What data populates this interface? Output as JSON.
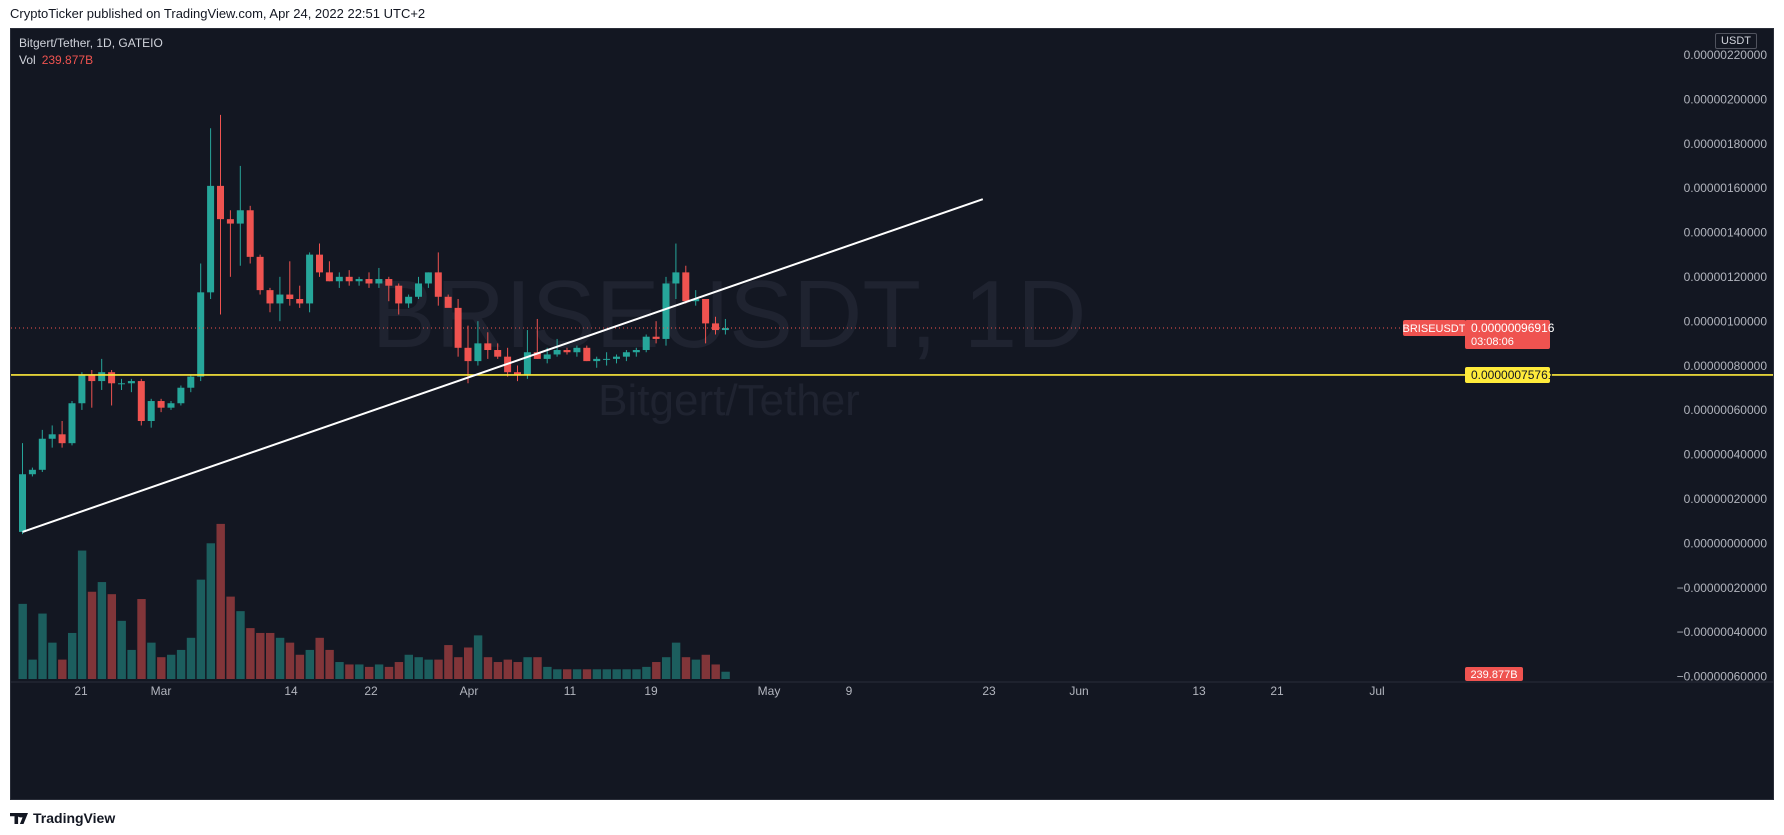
{
  "header": {
    "publish_line": "CryptoTicker published on TradingView.com, Apr 24, 2022 22:51 UTC+2"
  },
  "legend": {
    "symbol_line": "Bitgert/Tether, 1D, GATEIO",
    "vol_label": "Vol",
    "vol_value": "239.877B"
  },
  "currency_tag": "USDT",
  "watermark": {
    "ticker": "BRISEUSDT, 1D",
    "name": "Bitgert/Tether"
  },
  "footer": {
    "brand": "TradingView"
  },
  "colors": {
    "up": "#26a69a",
    "down": "#ef5350",
    "background": "#131722",
    "support_line": "#ffeb3b",
    "trend_line": "#ffffff"
  },
  "chart_data": {
    "type": "candlestick",
    "y_axis": {
      "ticks": [
        "0.00000220000",
        "0.00000200000",
        "0.00000180000",
        "0.00000160000",
        "0.00000140000",
        "0.00000120000",
        "0.00000100000",
        "0.00000080000",
        "0.00000060000",
        "0.00000040000",
        "0.00000020000",
        "0.00000000000",
        "−0.00000020000",
        "−0.00000040000",
        "−0.00000060000"
      ],
      "ylim": [
        -6e-07,
        2.2e-06
      ]
    },
    "x_axis": {
      "ticks": [
        "21",
        "Mar",
        "14",
        "22",
        "Apr",
        "11",
        "19",
        "May",
        "9",
        "23",
        "Jun",
        "13",
        "21",
        "Jul"
      ]
    },
    "candles": [
      {
        "o": 5e-08,
        "h": 4.5e-07,
        "l": 4e-08,
        "c": 3.1e-07
      },
      {
        "o": 3.1e-07,
        "h": 3.4e-07,
        "l": 3e-07,
        "c": 3.3e-07
      },
      {
        "o": 3.3e-07,
        "h": 5.1e-07,
        "l": 3.2e-07,
        "c": 4.7e-07
      },
      {
        "o": 4.7e-07,
        "h": 5.3e-07,
        "l": 4.3e-07,
        "c": 4.9e-07
      },
      {
        "o": 4.9e-07,
        "h": 5.5e-07,
        "l": 4.3e-07,
        "c": 4.5e-07
      },
      {
        "o": 4.5e-07,
        "h": 6.4e-07,
        "l": 4.4e-07,
        "c": 6.3e-07
      },
      {
        "o": 6.3e-07,
        "h": 7.7e-07,
        "l": 6e-07,
        "c": 7.6e-07
      },
      {
        "o": 7.6e-07,
        "h": 7.8e-07,
        "l": 6.1e-07,
        "c": 7.3e-07
      },
      {
        "o": 7.3e-07,
        "h": 8.3e-07,
        "l": 6.9e-07,
        "c": 7.7e-07
      },
      {
        "o": 7.7e-07,
        "h": 7.8e-07,
        "l": 6.2e-07,
        "c": 7.2e-07
      },
      {
        "o": 7.2e-07,
        "h": 7.4e-07,
        "l": 6.9e-07,
        "c": 7.2e-07
      },
      {
        "o": 7.2e-07,
        "h": 7.4e-07,
        "l": 6.8e-07,
        "c": 7.3e-07
      },
      {
        "o": 7.3e-07,
        "h": 7.4e-07,
        "l": 5.3e-07,
        "c": 5.5e-07
      },
      {
        "o": 5.5e-07,
        "h": 6.5e-07,
        "l": 5.2e-07,
        "c": 6.4e-07
      },
      {
        "o": 6.4e-07,
        "h": 6.5e-07,
        "l": 5.9e-07,
        "c": 6.1e-07
      },
      {
        "o": 6.1e-07,
        "h": 6.4e-07,
        "l": 6e-07,
        "c": 6.3e-07
      },
      {
        "o": 6.3e-07,
        "h": 7.1e-07,
        "l": 6.2e-07,
        "c": 7e-07
      },
      {
        "o": 7e-07,
        "h": 7.6e-07,
        "l": 6.8e-07,
        "c": 7.5e-07
      },
      {
        "o": 7.5e-07,
        "h": 1.26e-06,
        "l": 7.3e-07,
        "c": 1.13e-06
      },
      {
        "o": 1.13e-06,
        "h": 1.87e-06,
        "l": 1.1e-06,
        "c": 1.61e-06
      },
      {
        "o": 1.61e-06,
        "h": 1.93e-06,
        "l": 1.03e-06,
        "c": 1.46e-06
      },
      {
        "o": 1.46e-06,
        "h": 1.5e-06,
        "l": 1.2e-06,
        "c": 1.44e-06
      },
      {
        "o": 1.44e-06,
        "h": 1.7e-06,
        "l": 1.25e-06,
        "c": 1.5e-06
      },
      {
        "o": 1.5e-06,
        "h": 1.52e-06,
        "l": 1.26e-06,
        "c": 1.29e-06
      },
      {
        "o": 1.29e-06,
        "h": 1.3e-06,
        "l": 1.12e-06,
        "c": 1.14e-06
      },
      {
        "o": 1.14e-06,
        "h": 1.15e-06,
        "l": 1.04e-06,
        "c": 1.08e-06
      },
      {
        "o": 1.08e-06,
        "h": 1.2e-06,
        "l": 1e-06,
        "c": 1.12e-06
      },
      {
        "o": 1.12e-06,
        "h": 1.27e-06,
        "l": 1.07e-06,
        "c": 1.1e-06
      },
      {
        "o": 1.1e-06,
        "h": 1.16e-06,
        "l": 1.06e-06,
        "c": 1.08e-06
      },
      {
        "o": 1.08e-06,
        "h": 1.31e-06,
        "l": 1.04e-06,
        "c": 1.3e-06
      },
      {
        "o": 1.3e-06,
        "h": 1.35e-06,
        "l": 1.2e-06,
        "c": 1.22e-06
      },
      {
        "o": 1.22e-06,
        "h": 1.27e-06,
        "l": 1.18e-06,
        "c": 1.18e-06
      },
      {
        "o": 1.18e-06,
        "h": 1.22e-06,
        "l": 1.15e-06,
        "c": 1.2e-06
      },
      {
        "o": 1.2e-06,
        "h": 1.23e-06,
        "l": 1.16e-06,
        "c": 1.18e-06
      },
      {
        "o": 1.18e-06,
        "h": 1.2e-06,
        "l": 1.16e-06,
        "c": 1.19e-06
      },
      {
        "o": 1.19e-06,
        "h": 1.22e-06,
        "l": 1.15e-06,
        "c": 1.17e-06
      },
      {
        "o": 1.17e-06,
        "h": 1.24e-06,
        "l": 1.15e-06,
        "c": 1.19e-06
      },
      {
        "o": 1.19e-06,
        "h": 1.2e-06,
        "l": 1.09e-06,
        "c": 1.16e-06
      },
      {
        "o": 1.16e-06,
        "h": 1.17e-06,
        "l": 1.03e-06,
        "c": 1.08e-06
      },
      {
        "o": 1.08e-06,
        "h": 1.12e-06,
        "l": 1.06e-06,
        "c": 1.11e-06
      },
      {
        "o": 1.11e-06,
        "h": 1.2e-06,
        "l": 1.1e-06,
        "c": 1.17e-06
      },
      {
        "o": 1.17e-06,
        "h": 1.22e-06,
        "l": 1.15e-06,
        "c": 1.22e-06
      },
      {
        "o": 1.22e-06,
        "h": 1.31e-06,
        "l": 1.07e-06,
        "c": 1.11e-06
      },
      {
        "o": 1.11e-06,
        "h": 1.12e-06,
        "l": 1.07e-06,
        "c": 1.06e-06
      },
      {
        "o": 1.06e-06,
        "h": 1.1e-06,
        "l": 8.4e-07,
        "c": 8.8e-07
      },
      {
        "o": 8.8e-07,
        "h": 9.8e-07,
        "l": 7.2e-07,
        "c": 8.2e-07
      },
      {
        "o": 8.2e-07,
        "h": 1e-06,
        "l": 8e-07,
        "c": 9e-07
      },
      {
        "o": 9e-07,
        "h": 9.5e-07,
        "l": 8.3e-07,
        "c": 8.7e-07
      },
      {
        "o": 8.7e-07,
        "h": 9e-07,
        "l": 8.3e-07,
        "c": 8.4e-07
      },
      {
        "o": 8.4e-07,
        "h": 8.8e-07,
        "l": 7.5e-07,
        "c": 7.7e-07
      },
      {
        "o": 7.7e-07,
        "h": 8e-07,
        "l": 7.3e-07,
        "c": 7.6e-07
      },
      {
        "o": 7.6e-07,
        "h": 9.6e-07,
        "l": 7.4e-07,
        "c": 8.6e-07
      },
      {
        "o": 8.6e-07,
        "h": 1.01e-06,
        "l": 8.3e-07,
        "c": 8.3e-07
      },
      {
        "o": 8.3e-07,
        "h": 8.8e-07,
        "l": 8.1e-07,
        "c": 8.5e-07
      },
      {
        "o": 8.5e-07,
        "h": 9.2e-07,
        "l": 8.4e-07,
        "c": 8.7e-07
      },
      {
        "o": 8.7e-07,
        "h": 8.8e-07,
        "l": 8.5e-07,
        "c": 8.6e-07
      },
      {
        "o": 8.6e-07,
        "h": 8.9e-07,
        "l": 8.4e-07,
        "c": 8.8e-07
      },
      {
        "o": 8.8e-07,
        "h": 8.9e-07,
        "l": 8.2e-07,
        "c": 8.2e-07
      },
      {
        "o": 8.2e-07,
        "h": 8.4e-07,
        "l": 7.9e-07,
        "c": 8.3e-07
      },
      {
        "o": 8.3e-07,
        "h": 8.6e-07,
        "l": 8e-07,
        "c": 8.3e-07
      },
      {
        "o": 8.3e-07,
        "h": 8.5e-07,
        "l": 8.1e-07,
        "c": 8.4e-07
      },
      {
        "o": 8.4e-07,
        "h": 8.7e-07,
        "l": 8.2e-07,
        "c": 8.6e-07
      },
      {
        "o": 8.6e-07,
        "h": 8.8e-07,
        "l": 8.4e-07,
        "c": 8.7e-07
      },
      {
        "o": 8.7e-07,
        "h": 9.4e-07,
        "l": 8.6e-07,
        "c": 9.3e-07
      },
      {
        "o": 9.3e-07,
        "h": 1e-06,
        "l": 9e-07,
        "c": 9.2e-07
      },
      {
        "o": 9.2e-07,
        "h": 1.2e-06,
        "l": 8.9e-07,
        "c": 1.17e-06
      },
      {
        "o": 1.17e-06,
        "h": 1.35e-06,
        "l": 1.1e-06,
        "c": 1.22e-06
      },
      {
        "o": 1.22e-06,
        "h": 1.25e-06,
        "l": 1.08e-06,
        "c": 1.09e-06
      },
      {
        "o": 1.09e-06,
        "h": 1.14e-06,
        "l": 1.07e-06,
        "c": 1.1e-06
      },
      {
        "o": 1.1e-06,
        "h": 1.1e-06,
        "l": 9e-07,
        "c": 9.9e-07
      },
      {
        "o": 9.9e-07,
        "h": 1.02e-06,
        "l": 9.4e-07,
        "c": 9.6e-07
      },
      {
        "o": 9.6e-07,
        "h": 1.01e-06,
        "l": 9.4e-07,
        "c": 9.692e-07
      }
    ],
    "volume": [
      0.31,
      0.08,
      0.27,
      0.15,
      0.08,
      0.19,
      0.53,
      0.36,
      0.4,
      0.35,
      0.24,
      0.12,
      0.33,
      0.15,
      0.09,
      0.1,
      0.12,
      0.17,
      0.41,
      0.56,
      0.64,
      0.34,
      0.28,
      0.21,
      0.19,
      0.19,
      0.17,
      0.15,
      0.1,
      0.12,
      0.17,
      0.12,
      0.07,
      0.06,
      0.06,
      0.05,
      0.06,
      0.05,
      0.07,
      0.1,
      0.09,
      0.08,
      0.08,
      0.14,
      0.09,
      0.13,
      0.18,
      0.09,
      0.07,
      0.08,
      0.07,
      0.09,
      0.09,
      0.05,
      0.04,
      0.04,
      0.04,
      0.04,
      0.04,
      0.04,
      0.04,
      0.04,
      0.04,
      0.05,
      0.07,
      0.09,
      0.15,
      0.09,
      0.08,
      0.1,
      0.06,
      0.03
    ],
    "horizontal_line": {
      "price": 7.576e-07,
      "label": "0.00000075761"
    },
    "trend_line": {
      "from": {
        "bar": 0,
        "price": 5e-08
      },
      "to": {
        "bar": 97,
        "price": 1.55e-06
      }
    },
    "last_price": {
      "symbol": "BRISEUSDT",
      "price_label": "0.00000096916",
      "countdown": "03:08:06",
      "price": 9.6916e-07
    },
    "volume_label": "239.877B"
  }
}
